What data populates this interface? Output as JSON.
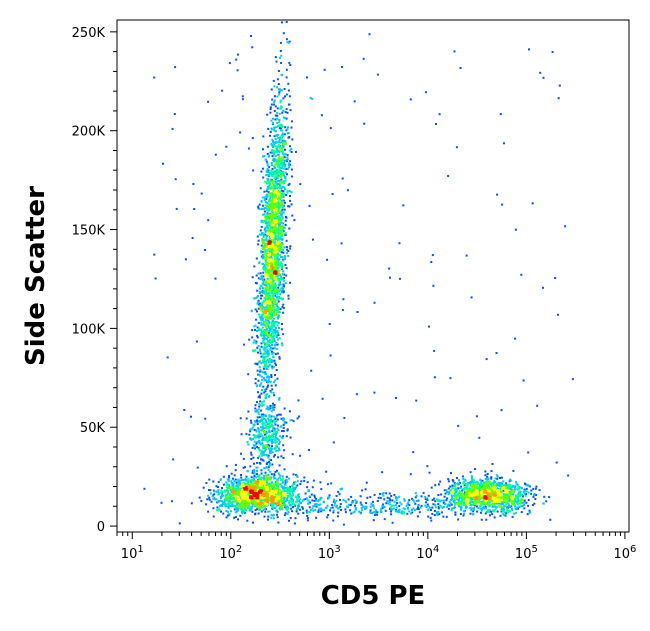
{
  "chart_data": {
    "type": "scatter",
    "subtype": "flow-cytometry density dot plot",
    "title": "",
    "xlabel": "CD5 PE",
    "ylabel": "Side Scatter",
    "x_scale": "log",
    "xlim": [
      7,
      1100000
    ],
    "ylim": [
      -3000,
      256000
    ],
    "x_ticks": [
      {
        "base": "10",
        "exp": "1",
        "value": 10
      },
      {
        "base": "10",
        "exp": "2",
        "value": 100
      },
      {
        "base": "10",
        "exp": "3",
        "value": 1000
      },
      {
        "base": "10",
        "exp": "4",
        "value": 10000
      },
      {
        "base": "10",
        "exp": "5",
        "value": 100000
      },
      {
        "base": "10",
        "exp": "6",
        "value": 1000000
      }
    ],
    "y_ticks": [
      {
        "label": "0",
        "value": 0
      },
      {
        "label": "50K",
        "value": 50000
      },
      {
        "label": "100K",
        "value": 100000
      },
      {
        "label": "150K",
        "value": 150000
      },
      {
        "label": "200K",
        "value": 200000
      },
      {
        "label": "250K",
        "value": 250000
      }
    ],
    "grid": false,
    "legend": "none",
    "colormap": [
      "#0000c8",
      "#0050ff",
      "#00c8ff",
      "#00ff9a",
      "#66ff00",
      "#ffff00",
      "#ff9900",
      "#ff0000"
    ],
    "populations": [
      {
        "name": "CD5-negative low-SSC cluster",
        "center_x": 180,
        "center_y": 17000,
        "n_events": 1500
      },
      {
        "name": "CD5-negative intermediate-SSC cluster",
        "center_x": 230,
        "center_y": 46000,
        "n_events": 350
      },
      {
        "name": "CD5-negative high-SSC granulocytes",
        "center_x": 260,
        "center_y": 140000,
        "n_events": 2400
      },
      {
        "name": "CD5-positive lymphocytes",
        "center_x": 40000,
        "center_y": 16000,
        "n_events": 1200
      },
      {
        "name": "transition band",
        "center_x": 3000,
        "center_y": 11000,
        "n_events": 450
      },
      {
        "name": "sparse background",
        "center_x": 30000,
        "center_y": 140000,
        "n_events": 160
      }
    ]
  }
}
